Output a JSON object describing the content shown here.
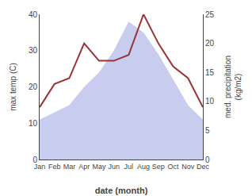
{
  "chart_data": {
    "type": "area",
    "xlabel": "date (month)",
    "ylabel": "max temp (C)",
    "y2label": "med. precipitation\n(kg/m2)",
    "categories": [
      "Jan",
      "Feb",
      "Mar",
      "Apr",
      "May",
      "Jun",
      "Jul",
      "Aug",
      "Sep",
      "Oct",
      "Nov",
      "Dec"
    ],
    "series": [
      {
        "type": "area",
        "color": "#c8ccee",
        "values": [
          11,
          13,
          15,
          20,
          24,
          30,
          38,
          35,
          29,
          22,
          15,
          11
        ]
      },
      {
        "type": "line",
        "color": "#993333",
        "axis": "y2",
        "values": [
          9,
          13,
          14,
          20,
          17,
          17,
          18,
          25,
          20,
          16,
          14,
          9
        ]
      }
    ],
    "ylim": [
      0,
      40
    ],
    "yticks": [
      0,
      10,
      20,
      30,
      40
    ],
    "y2lim": [
      0,
      25
    ],
    "y2ticks": [
      0,
      5,
      10,
      15,
      20,
      25
    ],
    "grid": false
  }
}
